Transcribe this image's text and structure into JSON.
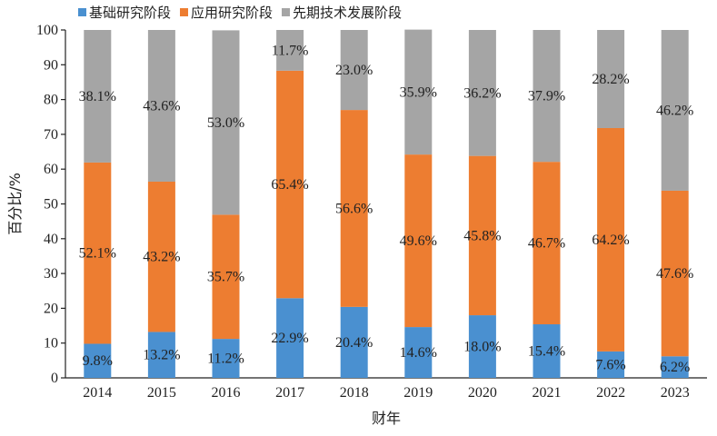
{
  "chart_data": {
    "type": "bar",
    "stacked": true,
    "categories": [
      "2014",
      "2015",
      "2016",
      "2017",
      "2018",
      "2019",
      "2020",
      "2021",
      "2022",
      "2023"
    ],
    "series": [
      {
        "name": "基础研究阶段",
        "color": "#4a90d0",
        "values": [
          9.8,
          13.2,
          11.2,
          22.9,
          20.4,
          14.6,
          18.0,
          15.4,
          7.6,
          6.2
        ],
        "labels": [
          "9.8%",
          "13.2%",
          "11.2%",
          "22.9%",
          "20.4%",
          "14.6%",
          "18.0%",
          "15.4%",
          "7.6%",
          "6.2%"
        ]
      },
      {
        "name": "应用研究阶段",
        "color": "#ed7d31",
        "values": [
          52.1,
          43.2,
          35.7,
          65.4,
          56.6,
          49.6,
          45.8,
          46.7,
          64.2,
          47.6
        ],
        "labels": [
          "52.1%",
          "43.2%",
          "35.7%",
          "65.4%",
          "56.6%",
          "49.6%",
          "45.8%",
          "46.7%",
          "64.2%",
          "47.6%"
        ]
      },
      {
        "name": "先期技术发展阶段",
        "color": "#a5a5a5",
        "values": [
          38.1,
          43.6,
          53.0,
          11.7,
          23.0,
          35.9,
          36.2,
          37.9,
          28.2,
          46.2
        ],
        "labels": [
          "38.1%",
          "43.6%",
          "53.0%",
          "11.7%",
          "23.0%",
          "35.9%",
          "36.2%",
          "37.9%",
          "28.2%",
          "46.2%"
        ]
      }
    ],
    "xlabel": "财年",
    "ylabel": "百分比/%",
    "ylim": [
      0,
      100
    ],
    "yticks": [
      "0",
      "10",
      "20",
      "30",
      "40",
      "50",
      "60",
      "70",
      "80",
      "90",
      "100"
    ],
    "legend_position": "top",
    "grid": false
  }
}
